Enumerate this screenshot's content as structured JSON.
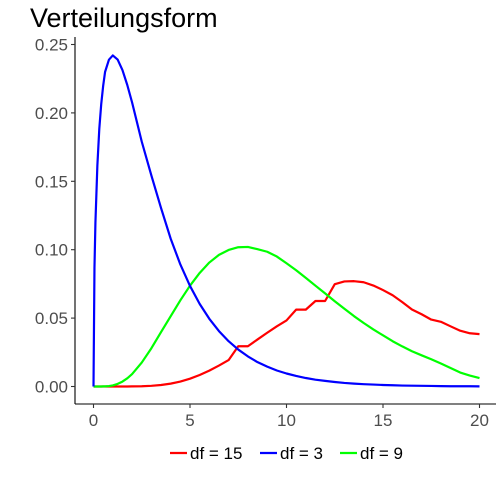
{
  "chart_data": {
    "type": "line",
    "title": "Verteilungsform",
    "xlabel": "",
    "ylabel": "",
    "xlim": [
      0,
      20
    ],
    "ylim": [
      0,
      0.25
    ],
    "xticks": [
      0,
      5,
      10,
      15,
      20
    ],
    "xtick_labels": [
      "0",
      "5",
      "10",
      "15",
      "20"
    ],
    "yticks": [
      0,
      0.05,
      0.1,
      0.15,
      0.2,
      0.25
    ],
    "ytick_labels": [
      "0.00",
      "0.05",
      "0.10",
      "0.15",
      "0.20",
      "0.25"
    ],
    "grid": false,
    "legend_position": "bottom",
    "x": [
      0,
      0.05,
      0.1,
      0.2,
      0.3,
      0.4,
      0.5,
      0.6,
      0.8,
      1,
      1.25,
      1.5,
      1.75,
      2,
      2.5,
      3,
      3.5,
      4,
      4.5,
      5,
      5.5,
      6,
      6.5,
      7,
      7.5,
      8,
      8.5,
      9,
      9.5,
      10,
      10.5,
      11,
      11.5,
      12,
      12.5,
      13,
      13.5,
      14,
      14.5,
      15,
      15.5,
      16,
      16.5,
      17,
      17.5,
      18,
      18.5,
      19,
      19.5,
      20
    ],
    "series": [
      {
        "name": "df = 15",
        "color": "#ff0000",
        "values": [
          0,
          0,
          0,
          0,
          0,
          0,
          0,
          0,
          0,
          0,
          0,
          0,
          0,
          0.0001,
          0.0002,
          0.0005,
          0.0011,
          0.0021,
          0.0036,
          0.0057,
          0.0084,
          0.0116,
          0.0153,
          0.0193,
          0.0294,
          0.0294,
          0.0344,
          0.0393,
          0.044,
          0.0483,
          0.0562,
          0.0562,
          0.0625,
          0.0625,
          0.0748,
          0.0768,
          0.077,
          0.0762,
          0.0738,
          0.0705,
          0.0667,
          0.0617,
          0.0563,
          0.0528,
          0.0489,
          0.0473,
          0.044,
          0.0408,
          0.0389,
          0.0383
        ]
      },
      {
        "name": "df = 3",
        "color": "#0000ff",
        "values": [
          0,
          0.0868,
          0.12,
          0.1614,
          0.1883,
          0.2064,
          0.2197,
          0.23,
          0.2389,
          0.242,
          0.239,
          0.2313,
          0.2204,
          0.2076,
          0.179,
          0.1542,
          0.1304,
          0.108,
          0.0892,
          0.0735,
          0.0604,
          0.0495,
          0.0405,
          0.0331,
          0.027,
          0.022,
          0.0178,
          0.0145,
          0.0117,
          0.0095,
          0.0077,
          0.0062,
          0.005,
          0.0041,
          0.0033,
          0.0026,
          0.0021,
          0.0017,
          0.0014,
          0.0011,
          0.0009,
          0.0007,
          0.0006,
          0.0005,
          0.0004,
          0.0003,
          0.0002,
          0.0002,
          0.0002,
          0.0001
        ]
      },
      {
        "name": "df = 9",
        "color": "#00ff00",
        "values": [
          0,
          0,
          0,
          0,
          0,
          0,
          0.0001,
          0.0001,
          0.0003,
          0.0008,
          0.0019,
          0.0036,
          0.006,
          0.0091,
          0.0175,
          0.028,
          0.0398,
          0.0514,
          0.063,
          0.0737,
          0.083,
          0.0906,
          0.0962,
          0.0998,
          0.1018,
          0.102,
          0.1004,
          0.0985,
          0.095,
          0.0901,
          0.085,
          0.0794,
          0.0737,
          0.0681,
          0.0623,
          0.0568,
          0.0514,
          0.0464,
          0.0417,
          0.0374,
          0.0331,
          0.0293,
          0.0258,
          0.0228,
          0.0199,
          0.0168,
          0.0135,
          0.0102,
          0.008,
          0.0062
        ]
      }
    ]
  }
}
